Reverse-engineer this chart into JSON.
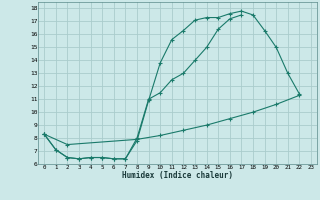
{
  "xlabel": "Humidex (Indice chaleur)",
  "bg_color": "#cce8e8",
  "grid_color": "#aacccc",
  "line_color": "#1a7a6a",
  "xlim": [
    -0.5,
    23.5
  ],
  "ylim": [
    6,
    18.5
  ],
  "xticks": [
    0,
    1,
    2,
    3,
    4,
    5,
    6,
    7,
    8,
    9,
    10,
    11,
    12,
    13,
    14,
    15,
    16,
    17,
    18,
    19,
    20,
    21,
    22,
    23
  ],
  "yticks": [
    6,
    7,
    8,
    9,
    10,
    11,
    12,
    13,
    14,
    15,
    16,
    17,
    18
  ],
  "curve1_x": [
    0,
    1,
    2,
    3,
    4,
    5,
    6,
    7,
    8,
    9,
    10,
    11,
    12,
    13,
    14,
    15,
    16,
    17,
    18,
    19,
    20,
    21,
    22
  ],
  "curve1_y": [
    8.3,
    7.1,
    6.5,
    6.4,
    6.5,
    6.5,
    6.4,
    6.4,
    7.8,
    10.9,
    13.8,
    15.6,
    16.3,
    17.1,
    17.3,
    17.3,
    17.6,
    17.8,
    17.5,
    16.3,
    15.0,
    13.0,
    11.4
  ],
  "curve2_x": [
    0,
    1,
    2,
    3,
    4,
    5,
    6,
    7,
    8,
    9,
    10,
    11,
    12,
    13,
    14,
    15,
    16,
    17
  ],
  "curve2_y": [
    8.3,
    7.1,
    6.5,
    6.4,
    6.5,
    6.5,
    6.4,
    6.4,
    8.0,
    11.0,
    11.5,
    12.5,
    13.0,
    14.0,
    15.0,
    16.4,
    17.2,
    17.5
  ],
  "curve3_x": [
    0,
    2,
    8,
    10,
    12,
    14,
    16,
    18,
    20,
    22
  ],
  "curve3_y": [
    8.3,
    7.5,
    7.9,
    8.2,
    8.6,
    9.0,
    9.5,
    10.0,
    10.6,
    11.3
  ]
}
